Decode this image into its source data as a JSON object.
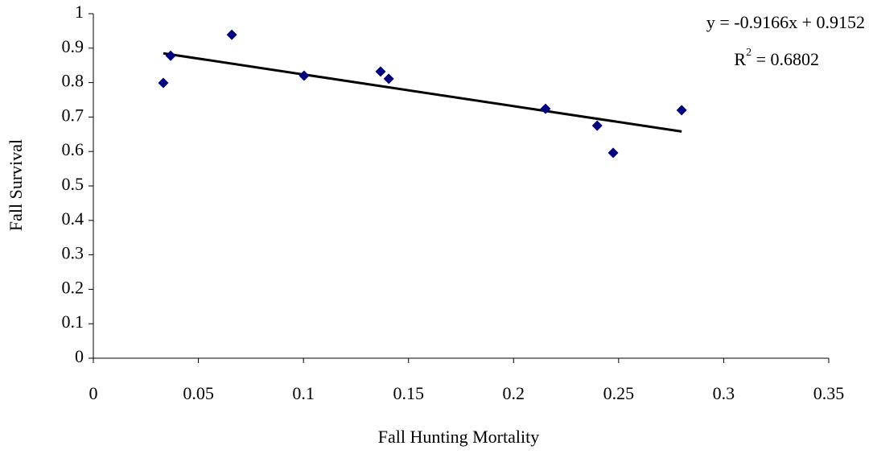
{
  "chart_data": {
    "type": "scatter",
    "x_label": "Fall Hunting Mortality",
    "y_label": "Fall Survival",
    "series": [
      {
        "color": "#000080",
        "x": [
          0.0333,
          0.0368,
          0.0659,
          0.1003,
          0.1367,
          0.1406,
          0.2152,
          0.2398,
          0.2474,
          0.28
        ],
        "values": [
          0.799,
          0.878,
          0.939,
          0.82,
          0.832,
          0.811,
          0.724,
          0.675,
          0.596,
          0.72
        ]
      }
    ],
    "trendline": {
      "color": "#000000",
      "x": [
        0.0333,
        0.28
      ],
      "values": [
        0.885,
        0.658
      ]
    },
    "annotations": {
      "equation": "y = -0.9166x + 0.9152",
      "r_squared": {
        "base": "R",
        "sup": "2",
        "rest": " = 0.6802"
      }
    },
    "xlim": [
      0,
      0.35
    ],
    "xticks": [
      0,
      0.05,
      0.1,
      0.15,
      0.2,
      0.25,
      0.3,
      0.35
    ],
    "ylim": [
      0,
      1
    ],
    "yticks": [
      0,
      0.1,
      0.2,
      0.3,
      0.4,
      0.5,
      0.6,
      0.7,
      0.8,
      0.9,
      1
    ],
    "grid": false
  }
}
